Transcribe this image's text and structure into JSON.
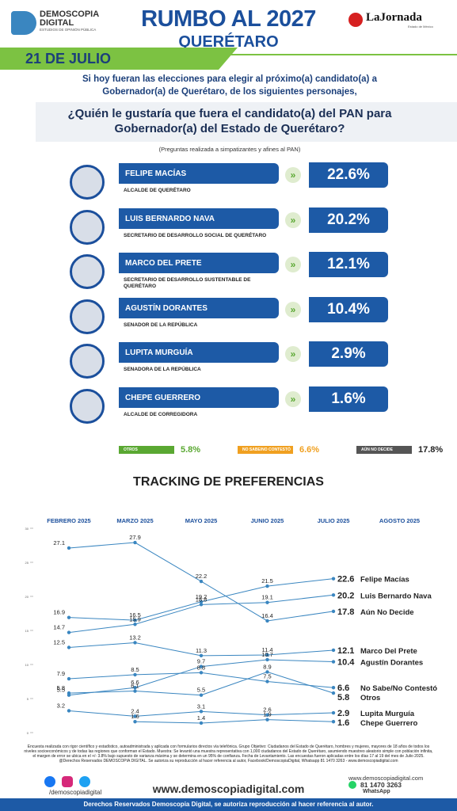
{
  "header": {
    "logo": "DEMOSCOPIA",
    "logo2": "DIGITAL",
    "logo_sub": "ESTUDIOS DE OPINIÓN PÚBLICA",
    "title": "RUMBO AL 2027",
    "subtitle": "QUERÉTARO",
    "partner": "LaJornada",
    "partner_sub": "Estado de México",
    "date": "21 DE JULIO"
  },
  "intro": "Si hoy fueran las elecciones para elegir al próximo(a) candidato(a) a Gobernador(a) de Querétaro, de los siguientes personajes,",
  "question": "¿Quién le gustaría que fuera el candidato(a) del PAN para Gobernador(a) del Estado de Querétaro?",
  "note": "(Preguntas realizada a simpatizantes y afines al PAN)",
  "candidates": [
    {
      "name": "FELIPE MACÍAS",
      "role": "ALCALDE DE QUERÉTARO",
      "result": "22.6%"
    },
    {
      "name": "LUIS BERNARDO NAVA",
      "role": "SECRETARIO DE DESARROLLO SOCIAL DE QUERÉTARO",
      "result": "20.2%"
    },
    {
      "name": "MARCO DEL PRETE",
      "role": "SECRETARIO DE DESARROLLO SUSTENTABLE DE QUERÉTARO",
      "result": "12.1%"
    },
    {
      "name": "AGUSTÍN DORANTES",
      "role": "SENADOR DE LA REPÚBLICA",
      "result": "10.4%"
    },
    {
      "name": "LUPITA MURGUÍA",
      "role": "SENADORA DE LA REPÚBLICA",
      "result": "2.9%"
    },
    {
      "name": "CHEPE GUERRERO",
      "role": "ALCALDE DE CORREGIDORA",
      "result": "1.6%"
    }
  ],
  "others": [
    {
      "label": "OTROS",
      "result": "5.8%",
      "color": "#5aa832"
    },
    {
      "label": "NO SABE/NO CONTESTÓ",
      "result": "6.6%",
      "color": "#f0a020"
    },
    {
      "label": "AÚN NO DECIDE",
      "result": "17.8%",
      "color": "#555555"
    }
  ],
  "chart_data": {
    "type": "line",
    "title": "TRACKING DE PREFERENCIAS",
    "categories": [
      "FEBRERO 2025",
      "MARZO 2025",
      "MAYO 2025",
      "JUNIO 2025",
      "JULIO 2025",
      "AGOSTO 2025"
    ],
    "ylim": [
      0,
      30
    ],
    "yticks": [
      0,
      5,
      10,
      15,
      20,
      25,
      30
    ],
    "color": "#3a86c0",
    "series": [
      {
        "name": "Felipe Macías",
        "values": [
          16.9,
          16.5,
          19.2,
          21.5,
          22.6,
          null
        ]
      },
      {
        "name": "Luis Bernardo Nava",
        "values": [
          14.7,
          15.9,
          18.8,
          19.1,
          20.2,
          null
        ]
      },
      {
        "name": "Aún No Decide",
        "values": [
          27.1,
          27.9,
          22.2,
          16.4,
          17.8,
          null
        ]
      },
      {
        "name": "Marco Del Prete",
        "values": [
          12.5,
          13.2,
          11.3,
          11.4,
          12.1,
          null
        ]
      },
      {
        "name": "Agustín Dorantes",
        "values": [
          5.5,
          6.6,
          9.7,
          10.7,
          10.4,
          null
        ]
      },
      {
        "name": "No Sabe/No Contestó",
        "values": [
          7.9,
          8.5,
          8.8,
          7.5,
          6.6,
          null
        ]
      },
      {
        "name": "Otros",
        "values": [
          5.8,
          6.1,
          5.5,
          8.9,
          5.8,
          null
        ]
      },
      {
        "name": "Lupita Murguía",
        "values": [
          3.2,
          2.4,
          3.1,
          2.6,
          2.9,
          null
        ]
      },
      {
        "name": "Chepe Guerrero",
        "values": [
          null,
          1.6,
          1.4,
          1.9,
          1.6,
          null
        ]
      }
    ]
  },
  "footer": {
    "method": "Encuesta realizada con rigor científico y estadístico, autoadministrada y aplicada con formularios directos vía telefónica. Grupo Objetivo: Ciudadanos del Estado de Querétaro, hombres y mujeres, mayores de 18 años de todos los niveles socioeconómicos y de todas las regiones que conforman el Estado. Muestra: Se levantó una muestra representativa con 1,000 ciudadanos del Estado de Querétaro, asumiendo muestreo aleatorio simple con población infinita, el margen de error se ubica en el +/- 3.8% bajo supuesto de varianza máxima y se determina en un 95% de confianza. Fecha de Levantamiento. Las encuestas fueron aplicadas entre los días 17 al 19 del mes de Julio 2025. @Derechos Reservados DEMOSCOPIA DIGITAL. Se autoriza su reproducción al hacer referencia al autor, Facebook/DemoscopiaDigital, Whatsapp 81 1470 3263 - www.demoscopiadigital.com",
    "social": "/demoscopiadigital",
    "website": "www.demoscopiadigital.com",
    "website_small": "www.demoscopiadigital.com",
    "phone": "81 1470 3263",
    "whatsapp": "WhatsApp",
    "rights": "Derechos Reservados Demoscopia Digital, se autoriza reproducción al hacer referencia al autor."
  }
}
